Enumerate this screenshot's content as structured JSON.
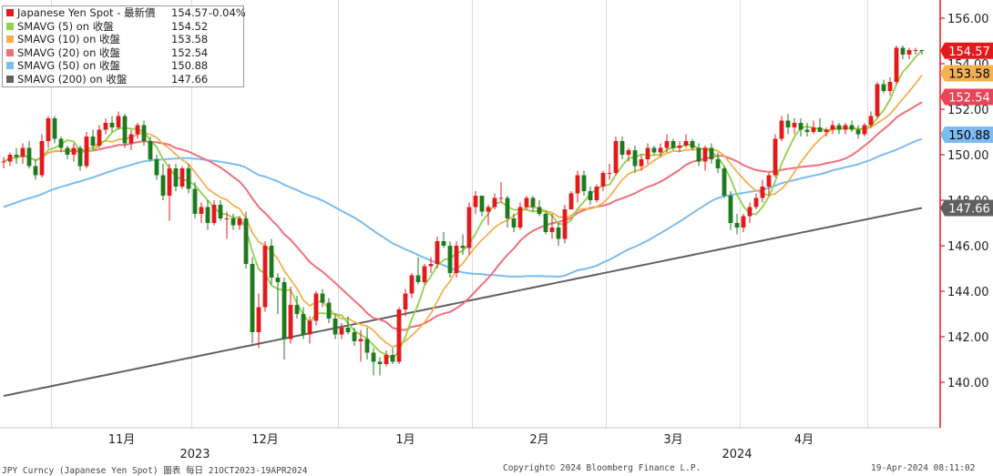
{
  "chart_data": {
    "type": "candlestick",
    "instrument": "Japanese Yen Spot",
    "last_label": "最新價",
    "last_value": 154.57,
    "last_change": "-0.04%",
    "ylim": [
      138,
      156.8
    ],
    "yticks": [
      140,
      142,
      144,
      146,
      148,
      150,
      152,
      154,
      156
    ],
    "ytick_labels": [
      "140.00",
      "142.00",
      "144.00",
      "146.00",
      "148.00",
      "150.00",
      "152.00",
      "154.00",
      "156.00"
    ],
    "x_months": [
      "11月",
      "12月",
      "1月",
      "2月",
      "3月",
      "4月"
    ],
    "x_years": [
      "2023",
      "2024"
    ],
    "legend": [
      {
        "name": "Japanese Yen Spot - 最新價",
        "value": "154.57",
        "change": "-0.04%",
        "color": "#e31a1c"
      },
      {
        "name": "SMAVG (5)  on 收盤",
        "value": "154.52",
        "color": "#8fd24a"
      },
      {
        "name": "SMAVG (10)  on 收盤",
        "value": "153.58",
        "color": "#f5b04f"
      },
      {
        "name": "SMAVG (20)  on 收盤",
        "value": "152.54",
        "color": "#f0707a"
      },
      {
        "name": "SMAVG (50)  on 收盤",
        "value": "150.88",
        "color": "#7cbcf0"
      },
      {
        "name": "SMAVG (200)  on 收盤",
        "value": "147.66",
        "color": "#606060"
      }
    ],
    "price_tags": [
      {
        "value": 154.57,
        "label": "154.57",
        "bg": "#e31a1c",
        "fg": "#ffffff"
      },
      {
        "value": 153.58,
        "label": "153.58",
        "bg": "#f5b04f",
        "fg": "#000000"
      },
      {
        "value": 152.54,
        "label": "152.54",
        "bg": "#e8445a",
        "fg": "#ffffff"
      },
      {
        "value": 150.88,
        "label": "150.88",
        "bg": "#7cbcf0",
        "fg": "#000000"
      },
      {
        "value": 147.66,
        "label": "147.66",
        "bg": "#606060",
        "fg": "#ffffff"
      }
    ],
    "colors": {
      "up": "#e31a1c",
      "down": "#1f7a1f",
      "axis": "#e31a1c",
      "grid": "#dcdcdc"
    },
    "candles": [
      [
        149.7,
        149.9,
        149.4,
        149.7
      ],
      [
        149.7,
        150.1,
        149.5,
        150.0
      ],
      [
        150.0,
        150.3,
        149.6,
        149.9
      ],
      [
        149.9,
        150.5,
        149.6,
        150.3
      ],
      [
        150.3,
        150.6,
        149.4,
        149.5
      ],
      [
        149.5,
        149.8,
        148.9,
        149.1
      ],
      [
        149.1,
        150.9,
        149.0,
        150.6
      ],
      [
        150.6,
        151.7,
        150.3,
        151.6
      ],
      [
        151.6,
        151.7,
        150.5,
        150.7
      ],
      [
        150.7,
        150.8,
        150.1,
        150.3
      ],
      [
        150.3,
        150.4,
        149.8,
        150.0
      ],
      [
        150.0,
        150.5,
        149.7,
        150.3
      ],
      [
        150.3,
        150.4,
        149.3,
        149.5
      ],
      [
        149.5,
        151.0,
        149.4,
        150.8
      ],
      [
        150.8,
        151.1,
        150.2,
        150.4
      ],
      [
        150.4,
        151.3,
        150.3,
        151.1
      ],
      [
        151.1,
        151.6,
        150.9,
        151.4
      ],
      [
        151.4,
        151.7,
        151.0,
        151.2
      ],
      [
        151.2,
        151.9,
        151.1,
        151.7
      ],
      [
        151.7,
        151.8,
        150.3,
        150.5
      ],
      [
        150.5,
        151.1,
        150.2,
        150.9
      ],
      [
        150.9,
        151.4,
        150.7,
        151.3
      ],
      [
        151.3,
        151.5,
        150.4,
        150.6
      ],
      [
        150.6,
        150.8,
        149.7,
        149.8
      ],
      [
        149.8,
        150.0,
        148.9,
        149.1
      ],
      [
        149.1,
        149.6,
        148.0,
        148.2
      ],
      [
        148.2,
        149.6,
        147.1,
        149.4
      ],
      [
        149.4,
        149.6,
        148.4,
        148.6
      ],
      [
        148.6,
        149.5,
        148.5,
        149.4
      ],
      [
        149.4,
        149.6,
        148.3,
        148.5
      ],
      [
        148.5,
        148.8,
        147.2,
        147.4
      ],
      [
        147.4,
        147.9,
        147.0,
        147.7
      ],
      [
        147.7,
        148.0,
        146.7,
        147.0
      ],
      [
        147.0,
        148.0,
        146.9,
        147.8
      ],
      [
        147.8,
        148.0,
        147.1,
        147.2
      ],
      [
        147.2,
        147.5,
        146.3,
        147.2
      ],
      [
        147.2,
        147.4,
        146.7,
        146.9
      ],
      [
        146.9,
        147.3,
        146.7,
        147.2
      ],
      [
        147.2,
        147.5,
        145.0,
        145.2
      ],
      [
        145.2,
        145.5,
        141.7,
        142.2
      ],
      [
        142.2,
        143.9,
        141.5,
        143.3
      ],
      [
        143.3,
        146.2,
        143.1,
        146.0
      ],
      [
        146.0,
        146.3,
        144.3,
        144.6
      ],
      [
        144.6,
        144.8,
        143.0,
        144.4
      ],
      [
        144.4,
        144.6,
        141.0,
        141.9
      ],
      [
        141.9,
        144.2,
        141.7,
        143.4
      ],
      [
        143.4,
        143.8,
        142.8,
        143.0
      ],
      [
        143.0,
        143.3,
        141.9,
        142.1
      ],
      [
        142.1,
        142.9,
        141.7,
        142.7
      ],
      [
        142.7,
        144.0,
        142.5,
        143.9
      ],
      [
        143.9,
        144.1,
        143.3,
        143.5
      ],
      [
        143.5,
        143.7,
        142.6,
        142.8
      ],
      [
        142.8,
        143.0,
        141.9,
        142.1
      ],
      [
        142.1,
        142.6,
        141.9,
        142.4
      ],
      [
        142.4,
        142.9,
        142.1,
        142.2
      ],
      [
        142.2,
        142.4,
        141.6,
        141.8
      ],
      [
        141.8,
        142.3,
        140.9,
        141.9
      ],
      [
        141.9,
        142.4,
        141.0,
        141.3
      ],
      [
        141.3,
        141.5,
        140.3,
        140.9
      ],
      [
        140.9,
        141.1,
        140.3,
        140.8
      ],
      [
        140.8,
        141.4,
        140.7,
        141.2
      ],
      [
        141.2,
        141.5,
        140.8,
        140.9
      ],
      [
        140.9,
        143.3,
        140.8,
        143.2
      ],
      [
        143.2,
        144.1,
        142.9,
        143.9
      ],
      [
        143.9,
        144.8,
        143.7,
        144.7
      ],
      [
        144.7,
        145.5,
        144.3,
        144.4
      ],
      [
        144.4,
        145.2,
        144.3,
        145.1
      ],
      [
        145.1,
        145.5,
        144.8,
        145.2
      ],
      [
        145.2,
        146.4,
        145.0,
        146.2
      ],
      [
        146.2,
        146.6,
        145.9,
        146.0
      ],
      [
        146.0,
        146.2,
        144.6,
        144.8
      ],
      [
        144.8,
        146.2,
        144.6,
        146.0
      ],
      [
        146.0,
        146.5,
        145.6,
        145.9
      ],
      [
        145.9,
        147.9,
        145.6,
        147.7
      ],
      [
        147.7,
        148.4,
        147.4,
        148.2
      ],
      [
        148.2,
        148.2,
        147.3,
        147.5
      ],
      [
        147.5,
        147.8,
        146.9,
        147.7
      ],
      [
        147.7,
        148.3,
        147.6,
        148.1
      ],
      [
        148.1,
        148.8,
        147.9,
        148.1
      ],
      [
        148.1,
        148.2,
        146.8,
        147.2
      ],
      [
        147.2,
        147.4,
        146.6,
        146.8
      ],
      [
        146.8,
        147.9,
        146.7,
        147.7
      ],
      [
        147.7,
        148.2,
        147.6,
        148.1
      ],
      [
        148.1,
        148.2,
        147.5,
        147.7
      ],
      [
        147.7,
        148.0,
        147.3,
        147.4
      ],
      [
        147.4,
        147.5,
        146.5,
        146.6
      ],
      [
        146.6,
        147.4,
        146.3,
        146.8
      ],
      [
        146.8,
        147.0,
        146.0,
        146.3
      ],
      [
        146.3,
        147.8,
        146.1,
        147.6
      ],
      [
        147.6,
        148.4,
        147.6,
        148.3
      ],
      [
        148.3,
        149.3,
        147.9,
        149.1
      ],
      [
        149.1,
        149.3,
        148.2,
        148.4
      ],
      [
        148.4,
        148.6,
        147.8,
        148.0
      ],
      [
        148.0,
        148.7,
        147.9,
        148.6
      ],
      [
        148.6,
        149.3,
        148.4,
        149.2
      ],
      [
        149.2,
        149.6,
        148.9,
        149.2
      ],
      [
        149.2,
        150.8,
        149.1,
        150.6
      ],
      [
        150.6,
        150.8,
        149.8,
        150.0
      ],
      [
        150.0,
        150.3,
        149.7,
        150.2
      ],
      [
        150.2,
        150.4,
        149.2,
        149.5
      ],
      [
        149.5,
        150.0,
        149.3,
        149.8
      ],
      [
        149.8,
        150.5,
        149.6,
        150.3
      ],
      [
        150.3,
        150.4,
        150.0,
        150.1
      ],
      [
        150.1,
        150.5,
        149.9,
        150.3
      ],
      [
        150.3,
        150.9,
        150.1,
        150.6
      ],
      [
        150.6,
        150.7,
        150.2,
        150.3
      ],
      [
        150.3,
        150.6,
        150.1,
        150.4
      ],
      [
        150.4,
        150.9,
        150.3,
        150.6
      ],
      [
        150.6,
        150.7,
        150.2,
        150.3
      ],
      [
        150.3,
        150.5,
        149.5,
        149.7
      ],
      [
        149.7,
        150.4,
        149.3,
        150.3
      ],
      [
        150.3,
        150.5,
        149.6,
        149.8
      ],
      [
        149.8,
        150.1,
        149.2,
        149.4
      ],
      [
        149.4,
        149.5,
        148.1,
        148.2
      ],
      [
        148.2,
        148.4,
        146.7,
        147.0
      ],
      [
        147.0,
        147.4,
        146.5,
        146.8
      ],
      [
        146.8,
        147.4,
        146.6,
        147.3
      ],
      [
        147.3,
        147.9,
        147.0,
        147.7
      ],
      [
        147.7,
        148.3,
        147.6,
        148.1
      ],
      [
        148.1,
        148.9,
        147.9,
        148.6
      ],
      [
        148.6,
        149.2,
        148.2,
        149.1
      ],
      [
        149.1,
        150.9,
        149.0,
        150.7
      ],
      [
        150.7,
        151.7,
        150.6,
        151.5
      ],
      [
        151.5,
        151.8,
        150.9,
        151.2
      ],
      [
        151.2,
        151.6,
        150.9,
        151.4
      ],
      [
        151.4,
        151.6,
        150.8,
        151.1
      ],
      [
        151.1,
        151.4,
        150.8,
        151.0
      ],
      [
        151.0,
        151.5,
        150.9,
        151.2
      ],
      [
        151.2,
        151.6,
        151.0,
        151.0
      ],
      [
        151.0,
        151.2,
        150.8,
        151.1
      ],
      [
        151.1,
        151.5,
        150.9,
        151.3
      ],
      [
        151.3,
        151.4,
        150.9,
        151.1
      ],
      [
        151.1,
        151.4,
        150.9,
        151.3
      ],
      [
        151.3,
        151.5,
        151.0,
        151.1
      ],
      [
        151.1,
        151.3,
        150.7,
        150.9
      ],
      [
        150.9,
        151.4,
        150.8,
        151.3
      ],
      [
        151.3,
        151.9,
        151.2,
        151.7
      ],
      [
        151.7,
        153.2,
        151.6,
        153.1
      ],
      [
        153.1,
        153.3,
        152.7,
        152.8
      ],
      [
        152.8,
        153.4,
        152.6,
        153.2
      ],
      [
        153.2,
        154.8,
        153.1,
        154.7
      ],
      [
        154.7,
        154.8,
        154.2,
        154.4
      ],
      [
        154.4,
        154.7,
        154.2,
        154.6
      ],
      [
        154.6,
        154.7,
        154.4,
        154.6
      ],
      [
        154.6,
        154.6,
        154.4,
        154.57
      ]
    ]
  },
  "footer": {
    "left": "JPY Curncy (Japanese Yen Spot) 圖表  每日 21OCT2023-19APR2024",
    "center": "Copyright© 2024 Bloomberg Finance L.P.",
    "right": "19-Apr-2024 08:11:02"
  }
}
